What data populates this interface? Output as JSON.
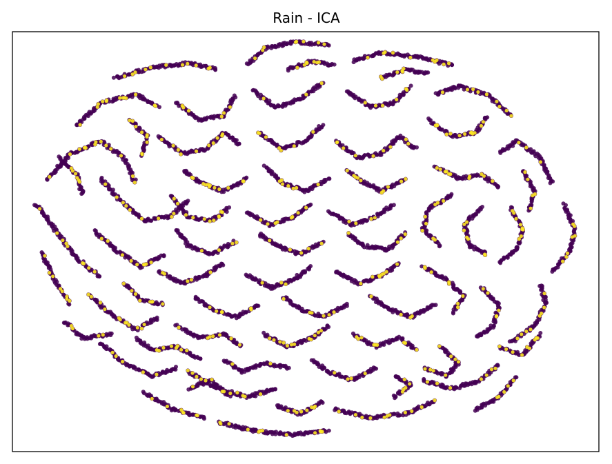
{
  "chart_data": {
    "type": "scatter",
    "title": "Rain - ICA",
    "xlabel": "",
    "ylabel": "",
    "xlim": [
      -1.0,
      1.0
    ],
    "ylim": [
      -1.0,
      1.0
    ],
    "axis_ticks": "hidden",
    "grid": false,
    "legend": "none",
    "colormap": "viridis",
    "series": [
      {
        "class": 0,
        "color": "#440154",
        "points_total_estimate": 20000
      },
      {
        "class": 1,
        "color": "#fde725",
        "points_total_estimate": 2600
      }
    ],
    "strand_paths": [
      [
        [
          -0.92,
          0.18
        ],
        [
          -0.85,
          0.05
        ],
        [
          -0.78,
          -0.08
        ],
        [
          -0.7,
          -0.17
        ]
      ],
      [
        [
          -0.9,
          -0.05
        ],
        [
          -0.86,
          -0.18
        ],
        [
          -0.8,
          -0.3
        ]
      ],
      [
        [
          -0.88,
          0.3
        ],
        [
          -0.8,
          0.42
        ],
        [
          -0.7,
          0.48
        ],
        [
          -0.62,
          0.4
        ],
        [
          -0.58,
          0.28
        ]
      ],
      [
        [
          -0.78,
          0.55
        ],
        [
          -0.7,
          0.66
        ],
        [
          -0.58,
          0.7
        ],
        [
          -0.5,
          0.64
        ]
      ],
      [
        [
          -0.65,
          0.78
        ],
        [
          -0.52,
          0.83
        ],
        [
          -0.4,
          0.85
        ],
        [
          -0.3,
          0.82
        ]
      ],
      [
        [
          -0.7,
          0.3
        ],
        [
          -0.62,
          0.18
        ],
        [
          -0.55,
          0.1
        ],
        [
          -0.46,
          0.12
        ],
        [
          -0.4,
          0.2
        ]
      ],
      [
        [
          -0.72,
          0.05
        ],
        [
          -0.64,
          -0.05
        ],
        [
          -0.56,
          -0.12
        ],
        [
          -0.48,
          -0.06
        ]
      ],
      [
        [
          -0.74,
          -0.25
        ],
        [
          -0.66,
          -0.35
        ],
        [
          -0.58,
          -0.42
        ],
        [
          -0.5,
          -0.36
        ]
      ],
      [
        [
          -0.7,
          -0.48
        ],
        [
          -0.62,
          -0.58
        ],
        [
          -0.52,
          -0.64
        ],
        [
          -0.44,
          -0.6
        ]
      ],
      [
        [
          -0.55,
          -0.72
        ],
        [
          -0.45,
          -0.8
        ],
        [
          -0.34,
          -0.84
        ]
      ],
      [
        [
          -0.4,
          -0.62
        ],
        [
          -0.3,
          -0.7
        ],
        [
          -0.2,
          -0.74
        ],
        [
          -0.1,
          -0.7
        ]
      ],
      [
        [
          -0.3,
          -0.86
        ],
        [
          -0.18,
          -0.9
        ],
        [
          -0.05,
          -0.92
        ],
        [
          0.08,
          -0.9
        ]
      ],
      [
        [
          0.1,
          -0.8
        ],
        [
          0.22,
          -0.84
        ],
        [
          0.34,
          -0.82
        ],
        [
          0.44,
          -0.76
        ]
      ],
      [
        [
          0.4,
          -0.66
        ],
        [
          0.5,
          -0.7
        ],
        [
          0.6,
          -0.66
        ],
        [
          0.66,
          -0.58
        ]
      ],
      [
        [
          0.58,
          -0.8
        ],
        [
          0.66,
          -0.74
        ],
        [
          0.72,
          -0.64
        ]
      ],
      [
        [
          0.7,
          -0.48
        ],
        [
          0.78,
          -0.4
        ],
        [
          0.82,
          -0.3
        ],
        [
          0.8,
          -0.2
        ]
      ],
      [
        [
          0.84,
          -0.14
        ],
        [
          0.9,
          -0.05
        ],
        [
          0.92,
          0.06
        ],
        [
          0.88,
          0.18
        ]
      ],
      [
        [
          0.84,
          0.28
        ],
        [
          0.8,
          0.4
        ],
        [
          0.72,
          0.48
        ],
        [
          0.66,
          0.42
        ]
      ],
      [
        [
          0.7,
          0.6
        ],
        [
          0.62,
          0.7
        ],
        [
          0.52,
          0.74
        ],
        [
          0.44,
          0.7
        ]
      ],
      [
        [
          0.5,
          0.84
        ],
        [
          0.38,
          0.88
        ],
        [
          0.26,
          0.9
        ],
        [
          0.16,
          0.86
        ]
      ],
      [
        [
          0.08,
          0.94
        ],
        [
          -0.04,
          0.95
        ],
        [
          -0.14,
          0.92
        ],
        [
          -0.2,
          0.84
        ]
      ],
      [
        [
          -0.18,
          0.72
        ],
        [
          -0.1,
          0.64
        ],
        [
          -0.02,
          0.68
        ],
        [
          0.06,
          0.76
        ]
      ],
      [
        [
          0.14,
          0.72
        ],
        [
          0.22,
          0.64
        ],
        [
          0.3,
          0.66
        ],
        [
          0.36,
          0.74
        ]
      ],
      [
        [
          0.42,
          0.58
        ],
        [
          0.5,
          0.5
        ],
        [
          0.58,
          0.52
        ],
        [
          0.62,
          0.6
        ]
      ],
      [
        [
          -0.44,
          0.66
        ],
        [
          -0.36,
          0.58
        ],
        [
          -0.28,
          0.6
        ],
        [
          -0.24,
          0.7
        ]
      ],
      [
        [
          -0.5,
          0.5
        ],
        [
          -0.42,
          0.42
        ],
        [
          -0.34,
          0.44
        ],
        [
          -0.28,
          0.52
        ],
        [
          -0.22,
          0.46
        ]
      ],
      [
        [
          -0.16,
          0.52
        ],
        [
          -0.08,
          0.44
        ],
        [
          0.0,
          0.48
        ],
        [
          0.06,
          0.56
        ]
      ],
      [
        [
          0.1,
          0.48
        ],
        [
          0.18,
          0.4
        ],
        [
          0.26,
          0.42
        ],
        [
          0.32,
          0.5
        ],
        [
          0.38,
          0.44
        ]
      ],
      [
        [
          0.44,
          0.36
        ],
        [
          0.52,
          0.3
        ],
        [
          0.6,
          0.32
        ],
        [
          0.66,
          0.26
        ]
      ],
      [
        [
          0.7,
          0.16
        ],
        [
          0.74,
          0.06
        ],
        [
          0.72,
          -0.04
        ],
        [
          0.66,
          -0.1
        ]
      ],
      [
        [
          0.6,
          0.16
        ],
        [
          0.54,
          0.08
        ],
        [
          0.56,
          -0.02
        ],
        [
          0.62,
          -0.06
        ]
      ],
      [
        [
          0.5,
          0.22
        ],
        [
          0.42,
          0.16
        ],
        [
          0.4,
          0.06
        ],
        [
          0.46,
          -0.02
        ]
      ],
      [
        [
          0.34,
          0.3
        ],
        [
          0.26,
          0.24
        ],
        [
          0.2,
          0.28
        ],
        [
          0.14,
          0.34
        ]
      ],
      [
        [
          0.08,
          0.3
        ],
        [
          0.0,
          0.24
        ],
        [
          -0.08,
          0.28
        ],
        [
          -0.14,
          0.36
        ]
      ],
      [
        [
          -0.2,
          0.3
        ],
        [
          -0.28,
          0.24
        ],
        [
          -0.36,
          0.28
        ],
        [
          -0.42,
          0.34
        ]
      ],
      [
        [
          -0.46,
          0.22
        ],
        [
          -0.4,
          0.12
        ],
        [
          -0.32,
          0.1
        ],
        [
          -0.26,
          0.16
        ]
      ],
      [
        [
          -0.2,
          0.14
        ],
        [
          -0.12,
          0.08
        ],
        [
          -0.04,
          0.12
        ],
        [
          0.02,
          0.18
        ]
      ],
      [
        [
          0.08,
          0.14
        ],
        [
          0.16,
          0.08
        ],
        [
          0.24,
          0.12
        ],
        [
          0.3,
          0.18
        ]
      ],
      [
        [
          0.34,
          0.04
        ],
        [
          0.28,
          -0.04
        ],
        [
          0.2,
          -0.02
        ],
        [
          0.14,
          0.04
        ]
      ],
      [
        [
          0.06,
          0.0
        ],
        [
          -0.02,
          -0.06
        ],
        [
          -0.1,
          -0.02
        ],
        [
          -0.16,
          0.04
        ]
      ],
      [
        [
          -0.24,
          0.0
        ],
        [
          -0.32,
          -0.06
        ],
        [
          -0.4,
          -0.02
        ],
        [
          -0.44,
          0.06
        ]
      ],
      [
        [
          -0.5,
          -0.14
        ],
        [
          -0.42,
          -0.2
        ],
        [
          -0.34,
          -0.16
        ],
        [
          -0.28,
          -0.1
        ]
      ],
      [
        [
          -0.2,
          -0.16
        ],
        [
          -0.12,
          -0.22
        ],
        [
          -0.04,
          -0.18
        ],
        [
          0.02,
          -0.12
        ]
      ],
      [
        [
          0.1,
          -0.14
        ],
        [
          0.18,
          -0.2
        ],
        [
          0.26,
          -0.16
        ],
        [
          0.32,
          -0.1
        ]
      ],
      [
        [
          0.4,
          -0.12
        ],
        [
          0.48,
          -0.18
        ],
        [
          0.54,
          -0.26
        ],
        [
          0.5,
          -0.34
        ]
      ],
      [
        [
          0.6,
          -0.22
        ],
        [
          0.66,
          -0.3
        ],
        [
          0.64,
          -0.4
        ],
        [
          0.58,
          -0.46
        ]
      ],
      [
        [
          0.44,
          -0.3
        ],
        [
          0.36,
          -0.36
        ],
        [
          0.28,
          -0.32
        ],
        [
          0.22,
          -0.26
        ]
      ],
      [
        [
          0.14,
          -0.3
        ],
        [
          0.06,
          -0.36
        ],
        [
          -0.02,
          -0.32
        ],
        [
          -0.08,
          -0.26
        ]
      ],
      [
        [
          -0.16,
          -0.3
        ],
        [
          -0.24,
          -0.36
        ],
        [
          -0.32,
          -0.32
        ],
        [
          -0.38,
          -0.26
        ]
      ],
      [
        [
          -0.44,
          -0.4
        ],
        [
          -0.36,
          -0.46
        ],
        [
          -0.28,
          -0.44
        ],
        [
          -0.22,
          -0.5
        ]
      ],
      [
        [
          -0.14,
          -0.44
        ],
        [
          -0.06,
          -0.5
        ],
        [
          0.02,
          -0.46
        ],
        [
          0.08,
          -0.4
        ]
      ],
      [
        [
          0.16,
          -0.44
        ],
        [
          0.24,
          -0.5
        ],
        [
          0.32,
          -0.46
        ],
        [
          0.38,
          -0.52
        ]
      ],
      [
        [
          0.46,
          -0.5
        ],
        [
          0.52,
          -0.58
        ],
        [
          0.48,
          -0.64
        ],
        [
          0.4,
          -0.6
        ]
      ],
      [
        [
          0.24,
          -0.6
        ],
        [
          0.16,
          -0.66
        ],
        [
          0.08,
          -0.62
        ],
        [
          0.02,
          -0.56
        ]
      ],
      [
        [
          -0.06,
          -0.6
        ],
        [
          -0.14,
          -0.58
        ],
        [
          -0.22,
          -0.62
        ],
        [
          -0.28,
          -0.56
        ]
      ],
      [
        [
          -0.36,
          -0.56
        ],
        [
          -0.44,
          -0.5
        ],
        [
          -0.52,
          -0.52
        ],
        [
          -0.58,
          -0.46
        ]
      ],
      [
        [
          -0.62,
          -0.2
        ],
        [
          -0.56,
          -0.28
        ],
        [
          -0.48,
          -0.3
        ]
      ],
      [
        [
          -0.6,
          0.58
        ],
        [
          -0.54,
          0.5
        ],
        [
          -0.56,
          0.4
        ]
      ],
      [
        [
          0.74,
          0.34
        ],
        [
          0.78,
          0.24
        ],
        [
          0.76,
          0.14
        ]
      ],
      [
        [
          0.8,
          -0.44
        ],
        [
          0.74,
          -0.54
        ],
        [
          0.66,
          -0.5
        ]
      ],
      [
        [
          -0.84,
          0.4
        ],
        [
          -0.78,
          0.32
        ],
        [
          -0.76,
          0.22
        ]
      ],
      [
        [
          -0.82,
          -0.38
        ],
        [
          -0.76,
          -0.46
        ],
        [
          -0.66,
          -0.44
        ]
      ],
      [
        [
          0.26,
          0.78
        ],
        [
          0.34,
          0.82
        ],
        [
          0.42,
          0.8
        ]
      ],
      [
        [
          -0.06,
          0.82
        ],
        [
          0.02,
          0.86
        ],
        [
          0.1,
          0.84
        ]
      ],
      [
        [
          -0.1,
          -0.78
        ],
        [
          -0.02,
          -0.82
        ],
        [
          0.06,
          -0.76
        ]
      ],
      [
        [
          0.3,
          -0.74
        ],
        [
          0.36,
          -0.68
        ],
        [
          0.3,
          -0.64
        ]
      ],
      [
        [
          -0.26,
          -0.74
        ],
        [
          -0.32,
          -0.66
        ],
        [
          -0.4,
          -0.7
        ]
      ]
    ]
  }
}
